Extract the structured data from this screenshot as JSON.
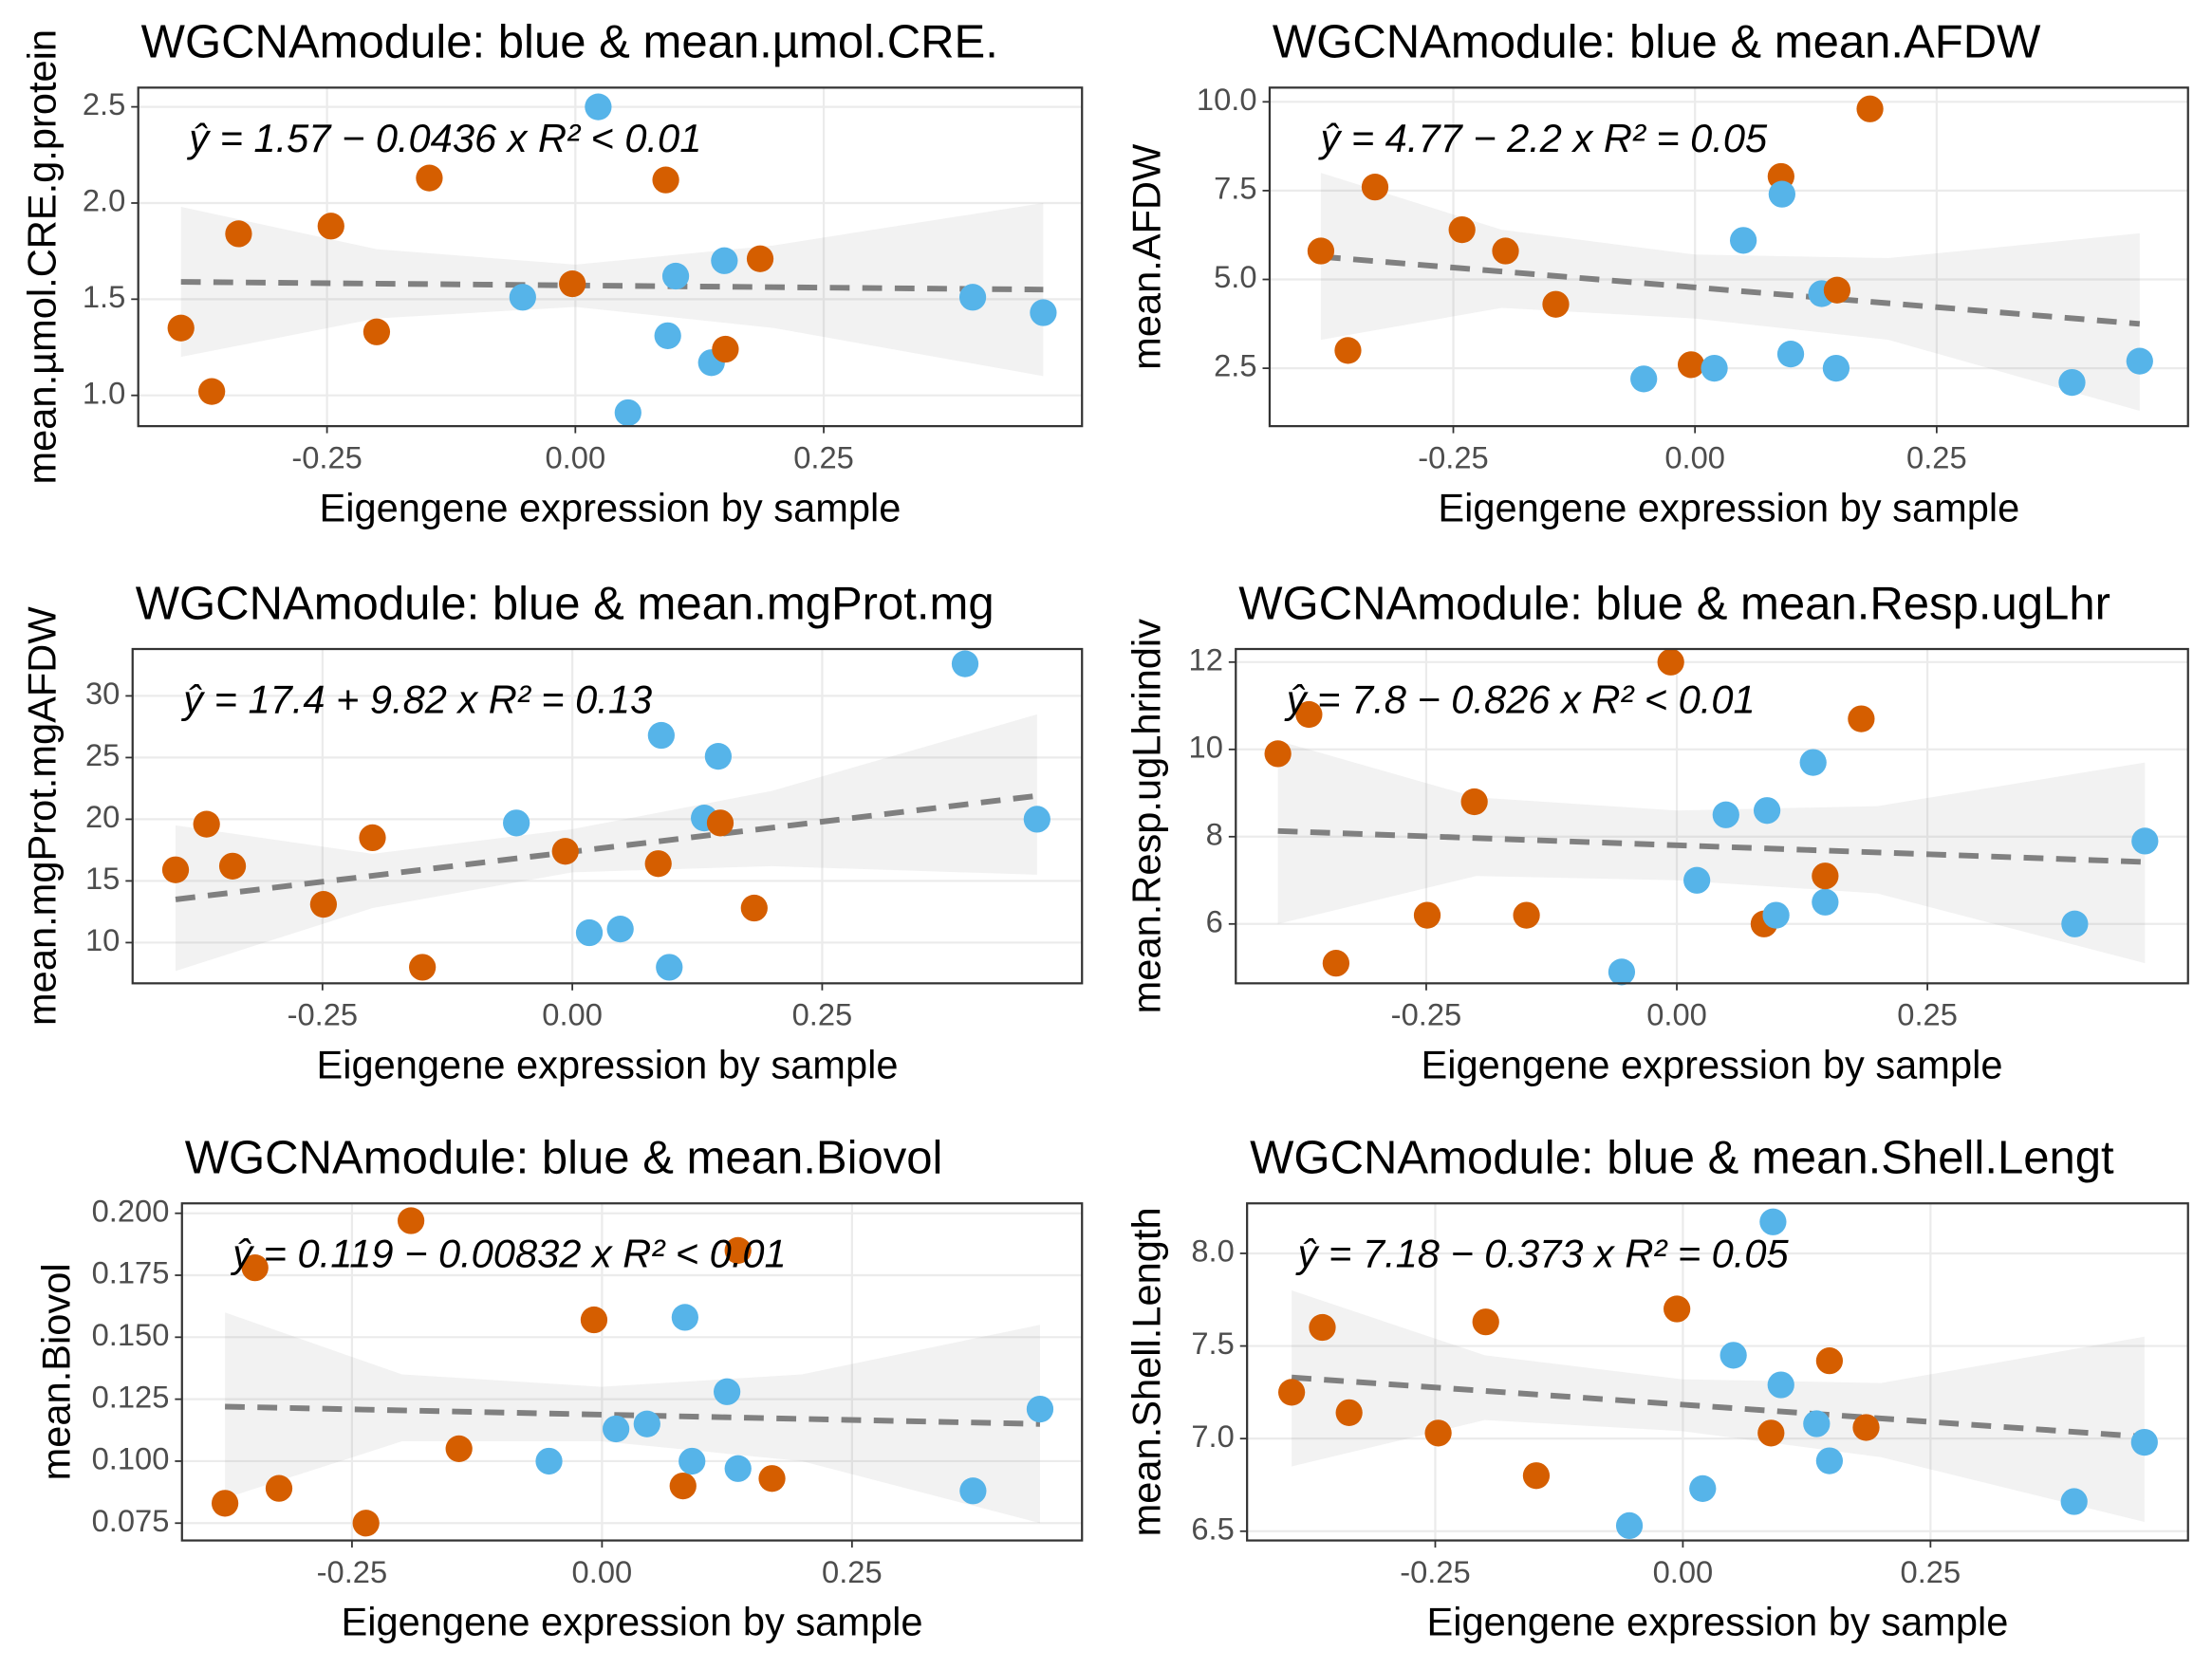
{
  "chart_data": [
    {
      "type": "scatter",
      "title": "WGCNAmodule: blue & mean.µmol.CRE.",
      "xlabel": "Eigengene expression by sample",
      "ylabel": "mean.µmol.CRE.g.protein",
      "annotation": "ŷ = 1.57 − 0.0436 x   R² < 0.01",
      "x": [
        -0.397,
        -0.366,
        -0.339,
        -0.246,
        -0.2,
        -0.147,
        -0.053,
        -0.003,
        0.023,
        0.053,
        0.091,
        0.093,
        0.101,
        0.137,
        0.15,
        0.151,
        0.186,
        0.4,
        0.471
      ],
      "y": [
        1.35,
        1.02,
        1.84,
        1.88,
        1.33,
        2.13,
        1.51,
        1.58,
        2.5,
        0.91,
        2.12,
        1.31,
        1.62,
        1.17,
        1.7,
        1.24,
        1.71,
        1.51,
        1.43
      ],
      "colors": [
        "#D55E00",
        "#D55E00",
        "#D55E00",
        "#D55E00",
        "#D55E00",
        "#D55E00",
        "#56B4E9",
        "#D55E00",
        "#56B4E9",
        "#56B4E9",
        "#D55E00",
        "#56B4E9",
        "#56B4E9",
        "#56B4E9",
        "#56B4E9",
        "#D55E00",
        "#D55E00",
        "#56B4E9",
        "#56B4E9"
      ],
      "fit": {
        "x": [
          -0.397,
          0.471
        ],
        "y": [
          1.59,
          1.55
        ]
      },
      "band": {
        "x": [
          -0.397,
          -0.2,
          0,
          0.2,
          0.471
        ],
        "upper": [
          1.98,
          1.76,
          1.68,
          1.78,
          2.0
        ],
        "lower": [
          1.2,
          1.4,
          1.46,
          1.35,
          1.1
        ]
      },
      "xlim": [
        -0.44,
        0.51
      ],
      "ylim": [
        0.84,
        2.6
      ],
      "xticks": [
        -0.25,
        {
          "value": 0,
          "label": "0.00"
        },
        0.25
      ],
      "yticks": [
        {
          "value": 1,
          "label": "1.0"
        },
        1.5,
        {
          "value": 2,
          "label": "2.0"
        },
        2.5
      ],
      "grid": true
    },
    {
      "type": "scatter",
      "title": "WGCNAmodule: blue & mean.AFDW",
      "xlabel": "Eigengene expression by sample",
      "ylabel": "mean.AFDW",
      "annotation": "ŷ = 4.77 − 2.2 x   R² = 0.05",
      "x": [
        -0.387,
        -0.359,
        -0.331,
        -0.241,
        -0.196,
        -0.144,
        -0.053,
        -0.004,
        0.02,
        0.05,
        0.089,
        0.09,
        0.099,
        0.131,
        0.146,
        0.147,
        0.181,
        0.39,
        0.46
      ],
      "y": [
        5.8,
        3.0,
        7.6,
        6.4,
        5.8,
        4.3,
        2.2,
        2.6,
        2.5,
        6.1,
        7.9,
        7.4,
        2.9,
        4.6,
        2.5,
        4.7,
        9.8,
        2.1,
        2.7
      ],
      "colors": [
        "#D55E00",
        "#D55E00",
        "#D55E00",
        "#D55E00",
        "#D55E00",
        "#D55E00",
        "#56B4E9",
        "#D55E00",
        "#56B4E9",
        "#56B4E9",
        "#D55E00",
        "#56B4E9",
        "#56B4E9",
        "#56B4E9",
        "#56B4E9",
        "#D55E00",
        "#D55E00",
        "#56B4E9",
        "#56B4E9"
      ],
      "fit": {
        "x": [
          -0.387,
          0.46
        ],
        "y": [
          5.64,
          3.75
        ]
      },
      "band": {
        "x": [
          -0.387,
          -0.2,
          0,
          0.2,
          0.46
        ],
        "upper": [
          8.0,
          6.4,
          5.7,
          5.6,
          6.3
        ],
        "lower": [
          3.3,
          4.2,
          3.9,
          3.3,
          1.3
        ]
      },
      "xlim": [
        -0.44,
        0.51
      ],
      "ylim": [
        0.87,
        10.4
      ],
      "xticks": [
        -0.25,
        {
          "value": 0,
          "label": "0.00"
        },
        0.25
      ],
      "yticks": [
        2.5,
        {
          "value": 5,
          "label": "5.0"
        },
        7.5,
        {
          "value": 10,
          "label": "10.0"
        }
      ],
      "grid": true
    },
    {
      "type": "scatter",
      "title": "WGCNAmodule: blue & mean.mgProt.mg",
      "xlabel": "Eigengene expression by sample",
      "ylabel": "mean.mgProt.mgAFDW",
      "annotation": "ŷ = 17.4 + 9.82 x   R² = 0.13",
      "x": [
        -0.397,
        -0.366,
        -0.34,
        -0.249,
        -0.2,
        -0.15,
        -0.056,
        -0.007,
        0.017,
        0.048,
        0.086,
        0.089,
        0.097,
        0.132,
        0.146,
        0.148,
        0.182,
        0.393,
        0.465
      ],
      "y": [
        15.9,
        19.6,
        16.2,
        13.1,
        18.5,
        8.0,
        19.7,
        17.4,
        10.8,
        11.1,
        16.4,
        26.8,
        8.0,
        20.1,
        25.1,
        19.7,
        12.8,
        32.6,
        20.0
      ],
      "colors": [
        "#D55E00",
        "#D55E00",
        "#D55E00",
        "#D55E00",
        "#D55E00",
        "#D55E00",
        "#56B4E9",
        "#D55E00",
        "#56B4E9",
        "#56B4E9",
        "#D55E00",
        "#56B4E9",
        "#56B4E9",
        "#56B4E9",
        "#56B4E9",
        "#D55E00",
        "#D55E00",
        "#56B4E9",
        "#56B4E9"
      ],
      "fit": {
        "x": [
          -0.397,
          0.465
        ],
        "y": [
          13.5,
          21.9
        ]
      },
      "band": {
        "x": [
          -0.397,
          -0.2,
          0,
          0.2,
          0.465
        ],
        "upper": [
          19.5,
          17.2,
          19.2,
          22.3,
          28.5
        ],
        "lower": [
          7.7,
          12.8,
          15.7,
          16.2,
          15.5
        ]
      },
      "xlim": [
        -0.44,
        0.51
      ],
      "ylim": [
        6.7,
        33.8
      ],
      "xticks": [
        -0.25,
        {
          "value": 0,
          "label": "0.00"
        },
        0.25
      ],
      "yticks": [
        10,
        15,
        20,
        25,
        30
      ],
      "grid": true
    },
    {
      "type": "scatter",
      "title": "WGCNAmodule: blue & mean.Resp.ugLhr",
      "xlabel": "Eigengene expression by sample",
      "ylabel": "mean.Resp.ugLhrindiv",
      "annotation": "ŷ = 7.8 − 0.826 x   R² < 0.01",
      "x": [
        -0.398,
        -0.367,
        -0.34,
        -0.249,
        -0.202,
        -0.15,
        -0.055,
        -0.006,
        0.02,
        0.049,
        0.087,
        0.09,
        0.099,
        0.136,
        0.148,
        0.148,
        0.184,
        0.397,
        0.467
      ],
      "y": [
        9.9,
        10.8,
        5.1,
        6.2,
        8.8,
        6.2,
        4.9,
        12.0,
        7.0,
        8.5,
        6.0,
        8.6,
        6.2,
        9.7,
        6.5,
        7.1,
        10.7,
        6.0,
        7.9
      ],
      "colors": [
        "#D55E00",
        "#D55E00",
        "#D55E00",
        "#D55E00",
        "#D55E00",
        "#D55E00",
        "#56B4E9",
        "#D55E00",
        "#56B4E9",
        "#56B4E9",
        "#D55E00",
        "#56B4E9",
        "#56B4E9",
        "#56B4E9",
        "#56B4E9",
        "#D55E00",
        "#D55E00",
        "#56B4E9",
        "#56B4E9"
      ],
      "fit": {
        "x": [
          -0.398,
          0.467
        ],
        "y": [
          8.13,
          7.42
        ]
      },
      "band": {
        "x": [
          -0.398,
          -0.2,
          0,
          0.2,
          0.467
        ],
        "upper": [
          10.2,
          8.9,
          8.6,
          8.7,
          9.7
        ],
        "lower": [
          6.0,
          7.1,
          7.0,
          6.7,
          5.1
        ]
      },
      "xlim": [
        -0.44,
        0.51
      ],
      "ylim": [
        4.64,
        12.3
      ],
      "xticks": [
        -0.25,
        {
          "value": 0,
          "label": "0.00"
        },
        0.25
      ],
      "yticks": [
        6,
        8,
        10,
        12
      ],
      "grid": true
    },
    {
      "type": "scatter",
      "title": "WGCNAmodule: blue & mean.Biovol",
      "xlabel": "Eigengene expression by sample",
      "ylabel": "mean.Biovol",
      "annotation": "ŷ = 0.119 − 0.00832 x   R² < 0.01",
      "x": [
        -0.377,
        -0.347,
        -0.323,
        -0.236,
        -0.191,
        -0.143,
        -0.053,
        -0.008,
        0.014,
        0.045,
        0.081,
        0.083,
        0.09,
        0.125,
        0.136,
        0.136,
        0.17,
        0.371,
        0.438
      ],
      "y": [
        0.083,
        0.178,
        0.089,
        0.075,
        0.197,
        0.105,
        0.1,
        0.157,
        0.113,
        0.115,
        0.09,
        0.158,
        0.1,
        0.128,
        0.097,
        0.185,
        0.093,
        0.088,
        0.121
      ],
      "colors": [
        "#D55E00",
        "#D55E00",
        "#D55E00",
        "#D55E00",
        "#D55E00",
        "#D55E00",
        "#56B4E9",
        "#D55E00",
        "#56B4E9",
        "#56B4E9",
        "#D55E00",
        "#56B4E9",
        "#56B4E9",
        "#56B4E9",
        "#56B4E9",
        "#D55E00",
        "#D55E00",
        "#56B4E9",
        "#56B4E9"
      ],
      "fit": {
        "x": [
          -0.377,
          0.438
        ],
        "y": [
          0.122,
          0.115
        ]
      },
      "band": {
        "x": [
          -0.377,
          -0.2,
          0,
          0.2,
          0.438
        ],
        "upper": [
          0.16,
          0.135,
          0.13,
          0.135,
          0.155
        ],
        "lower": [
          0.085,
          0.108,
          0.108,
          0.1,
          0.075
        ]
      },
      "xlim": [
        -0.42,
        0.48
      ],
      "ylim": [
        0.068,
        0.204
      ],
      "xticks": [
        -0.25,
        {
          "value": 0,
          "label": "0.00"
        },
        0.25
      ],
      "yticks": [
        0.075,
        {
          "value": 0.1,
          "label": "0.100"
        },
        0.125,
        {
          "value": 0.15,
          "label": "0.150"
        },
        0.175,
        {
          "value": 0.2,
          "label": "0.200"
        }
      ],
      "grid": true
    },
    {
      "type": "scatter",
      "title": "WGCNAmodule: blue & mean.Shell.Lengt",
      "xlabel": "Eigengene expression by sample",
      "ylabel": "mean.Shell.Length",
      "annotation": "ŷ = 7.18 − 0.373 x   R² = 0.05",
      "x": [
        -0.395,
        -0.364,
        -0.337,
        -0.247,
        -0.199,
        -0.148,
        -0.054,
        -0.006,
        0.02,
        0.051,
        0.089,
        0.091,
        0.099,
        0.135,
        0.148,
        0.148,
        0.185,
        0.395,
        0.466
      ],
      "y": [
        7.25,
        7.6,
        7.14,
        7.03,
        7.63,
        6.8,
        6.53,
        7.7,
        6.73,
        7.45,
        7.03,
        8.17,
        7.29,
        7.08,
        6.88,
        7.42,
        7.06,
        6.66,
        6.98
      ],
      "colors": [
        "#D55E00",
        "#D55E00",
        "#D55E00",
        "#D55E00",
        "#D55E00",
        "#D55E00",
        "#56B4E9",
        "#D55E00",
        "#56B4E9",
        "#56B4E9",
        "#D55E00",
        "#56B4E9",
        "#56B4E9",
        "#56B4E9",
        "#56B4E9",
        "#D55E00",
        "#D55E00",
        "#56B4E9",
        "#56B4E9"
      ],
      "fit": {
        "x": [
          -0.395,
          0.466
        ],
        "y": [
          7.33,
          7.01
        ]
      },
      "band": {
        "x": [
          -0.395,
          -0.2,
          0,
          0.2,
          0.466
        ],
        "upper": [
          7.8,
          7.45,
          7.32,
          7.3,
          7.55
        ],
        "lower": [
          6.85,
          7.1,
          7.04,
          6.9,
          6.55
        ]
      },
      "xlim": [
        -0.44,
        0.51
      ],
      "ylim": [
        6.45,
        8.27
      ],
      "xticks": [
        -0.25,
        {
          "value": 0,
          "label": "0.00"
        },
        0.25
      ],
      "yticks": [
        6.5,
        {
          "value": 7,
          "label": "7.0"
        },
        7.5,
        {
          "value": 8,
          "label": "8.0"
        }
      ],
      "grid": true
    }
  ]
}
